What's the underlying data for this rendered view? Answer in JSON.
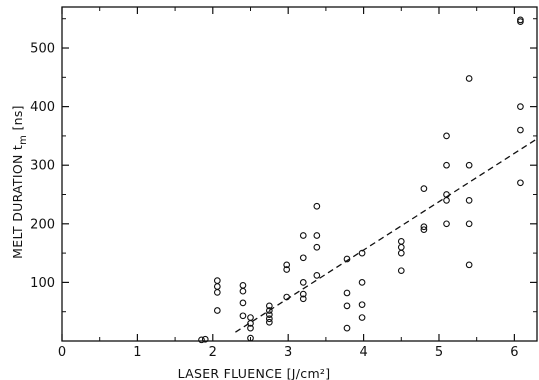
{
  "chart_data": {
    "type": "scatter",
    "xlabel": "LASER FLUENCE  [J/cm²]",
    "ylabel": "MELT DURATION  t",
    "ylabel_sub": "m",
    "ylabel_unit": " [ns]",
    "xlim": [
      0,
      6.3
    ],
    "ylim": [
      0,
      570
    ],
    "xticks": [
      0,
      1,
      2,
      3,
      4,
      5,
      6
    ],
    "yticks": [
      100,
      200,
      300,
      400,
      500
    ],
    "grid": false,
    "series": [
      {
        "marker": "open-circle",
        "points": [
          [
            1.85,
            2
          ],
          [
            1.9,
            3
          ],
          [
            2.06,
            103
          ],
          [
            2.06,
            93
          ],
          [
            2.06,
            83
          ],
          [
            2.06,
            52
          ],
          [
            2.4,
            95
          ],
          [
            2.4,
            85
          ],
          [
            2.4,
            65
          ],
          [
            2.4,
            43
          ],
          [
            2.5,
            40
          ],
          [
            2.5,
            30
          ],
          [
            2.5,
            22
          ],
          [
            2.5,
            5
          ],
          [
            2.75,
            60
          ],
          [
            2.75,
            52
          ],
          [
            2.75,
            45
          ],
          [
            2.75,
            38
          ],
          [
            2.75,
            32
          ],
          [
            2.98,
            130
          ],
          [
            2.98,
            122
          ],
          [
            2.98,
            75
          ],
          [
            3.2,
            180
          ],
          [
            3.2,
            142
          ],
          [
            3.2,
            100
          ],
          [
            3.2,
            80
          ],
          [
            3.2,
            72
          ],
          [
            3.38,
            230
          ],
          [
            3.38,
            180
          ],
          [
            3.38,
            160
          ],
          [
            3.38,
            112
          ],
          [
            3.78,
            140
          ],
          [
            3.78,
            82
          ],
          [
            3.78,
            60
          ],
          [
            3.78,
            22
          ],
          [
            3.98,
            150
          ],
          [
            3.98,
            100
          ],
          [
            3.98,
            62
          ],
          [
            3.98,
            40
          ],
          [
            4.5,
            170
          ],
          [
            4.5,
            160
          ],
          [
            4.5,
            150
          ],
          [
            4.5,
            120
          ],
          [
            4.8,
            260
          ],
          [
            4.8,
            195
          ],
          [
            4.8,
            190
          ],
          [
            5.1,
            350
          ],
          [
            5.1,
            300
          ],
          [
            5.1,
            250
          ],
          [
            5.1,
            240
          ],
          [
            5.1,
            200
          ],
          [
            5.4,
            448
          ],
          [
            5.4,
            300
          ],
          [
            5.4,
            240
          ],
          [
            5.4,
            200
          ],
          [
            5.4,
            130
          ],
          [
            6.08,
            548
          ],
          [
            6.08,
            545
          ],
          [
            6.08,
            400
          ],
          [
            6.08,
            360
          ],
          [
            6.08,
            270
          ]
        ]
      }
    ],
    "fit_line": {
      "style": "dashed",
      "x": [
        2.3,
        6.3
      ],
      "y": [
        15,
        345
      ]
    }
  }
}
